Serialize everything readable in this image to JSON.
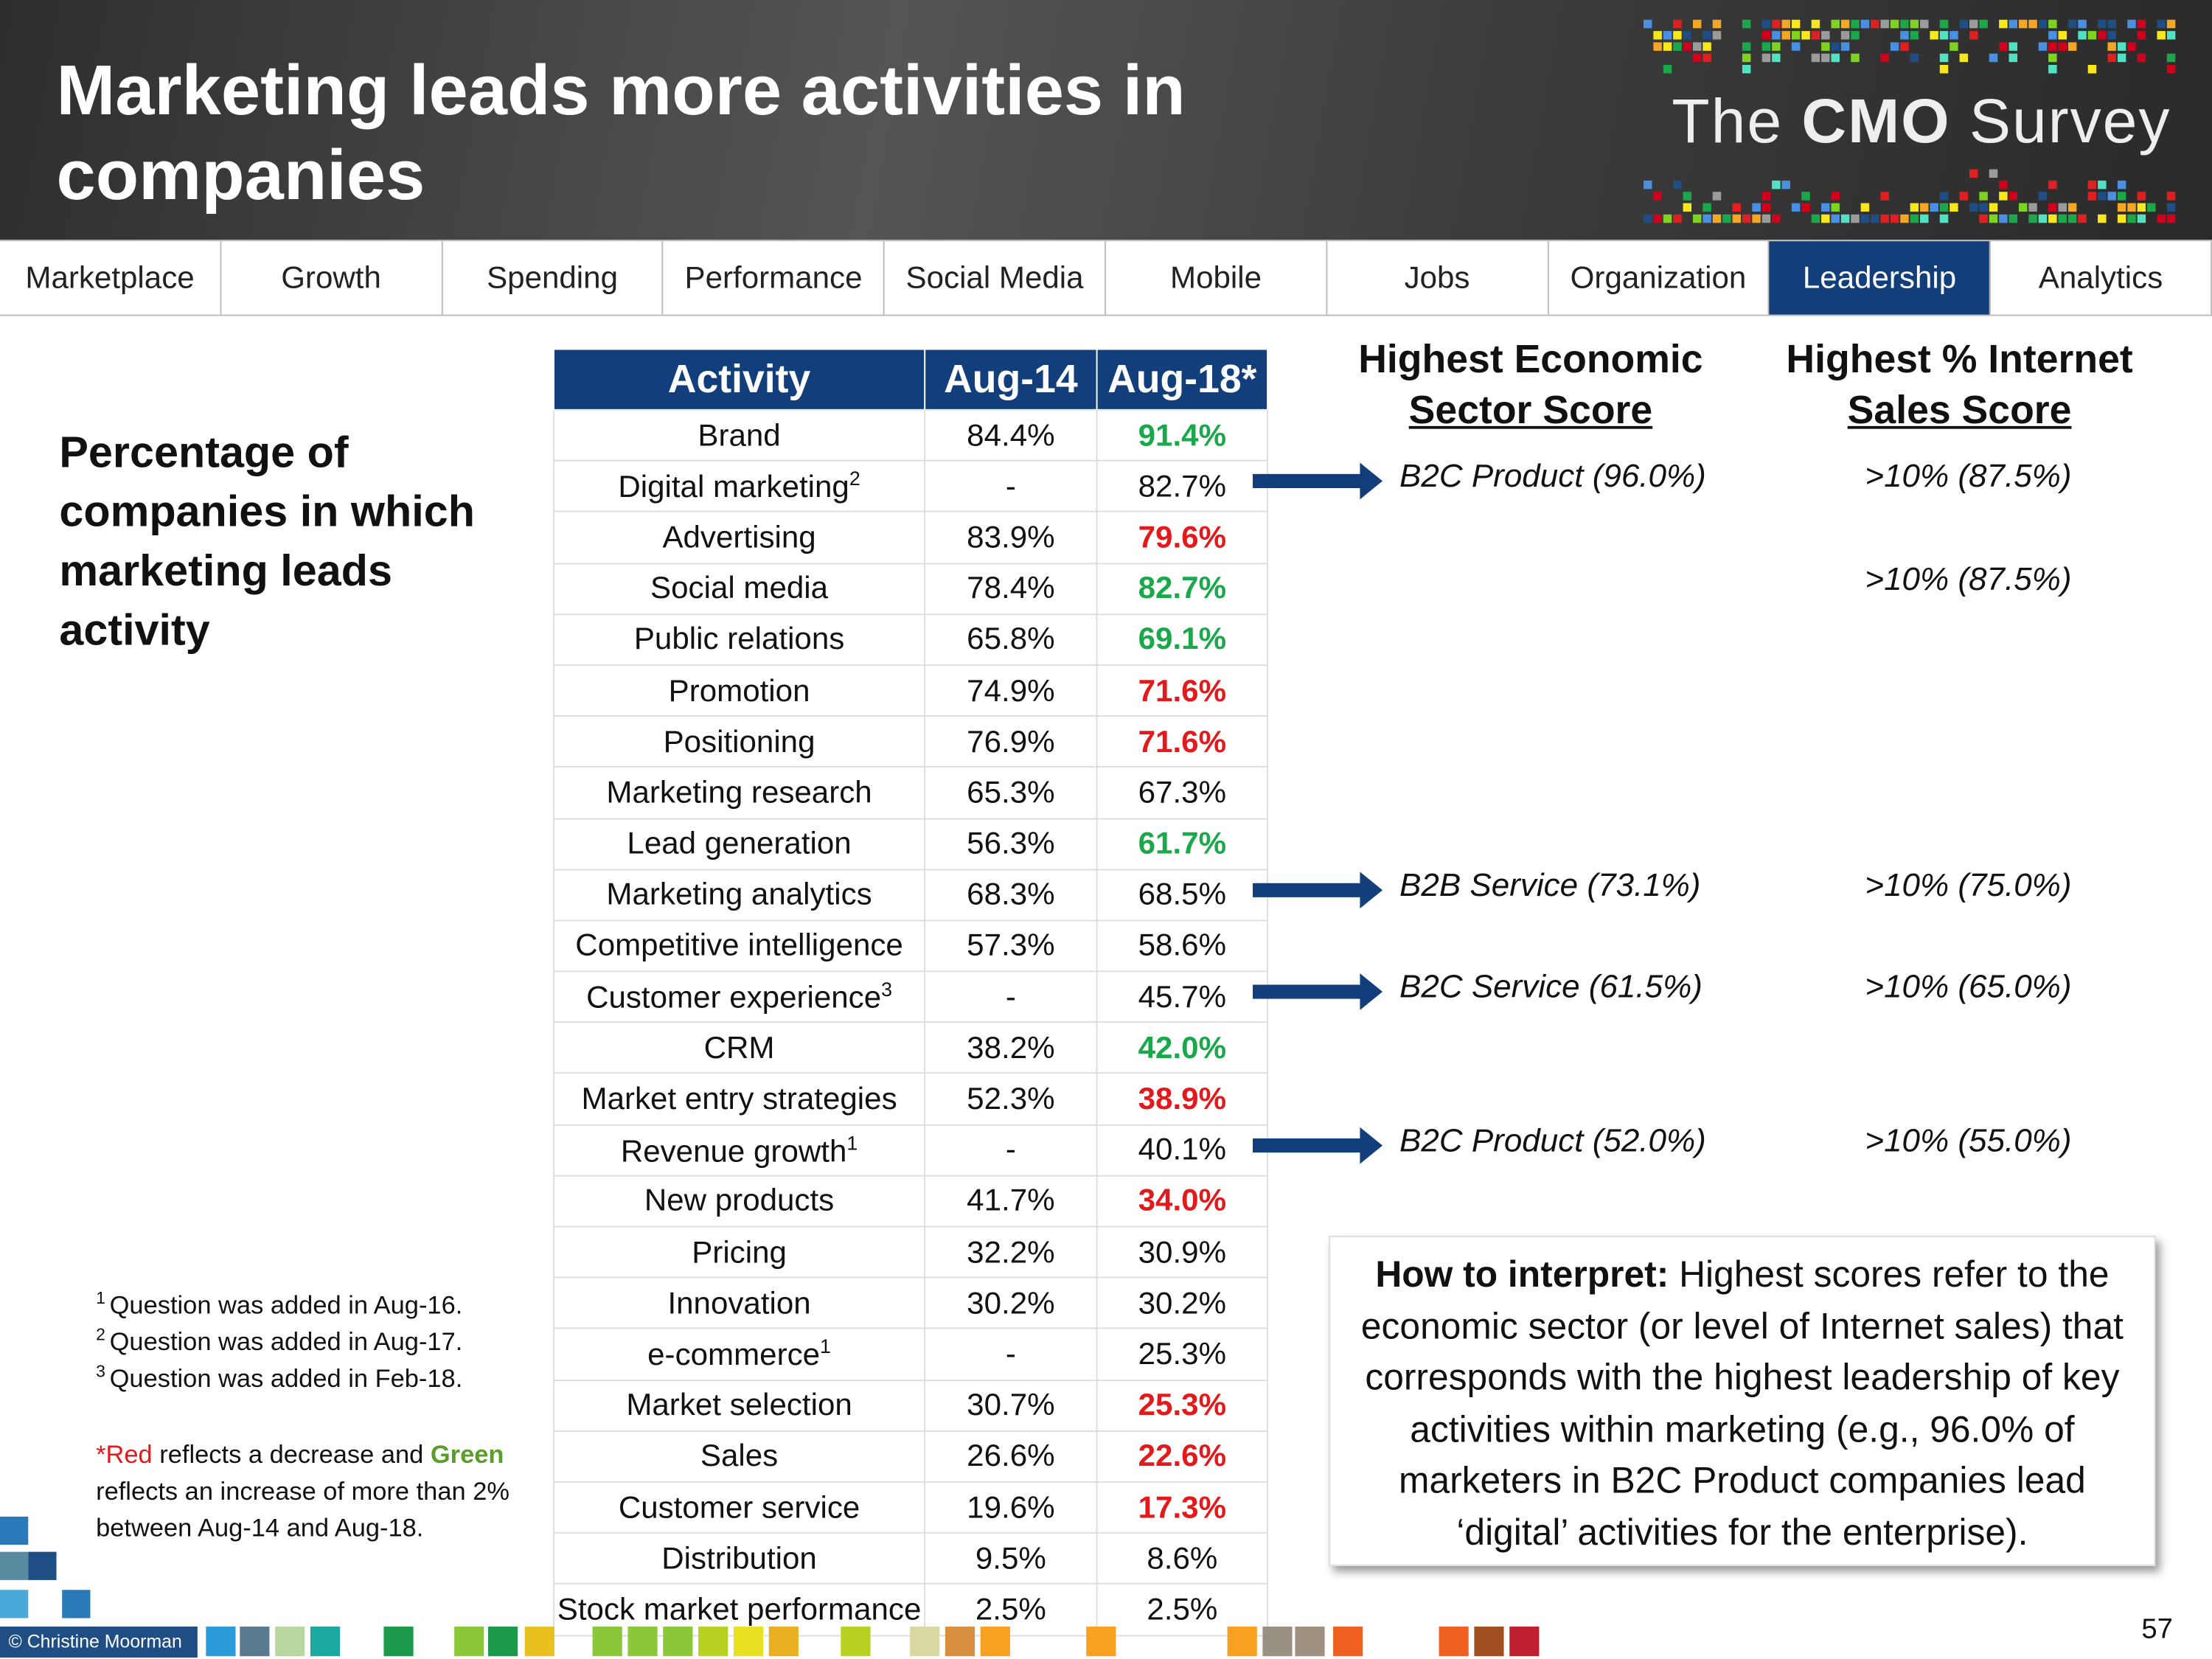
{
  "header": {
    "title": "Marketing leads more activities in companies",
    "logo": {
      "pre": "The",
      "bold": "CMO",
      "post": "Survey"
    }
  },
  "nav": {
    "tabs": [
      "Marketplace",
      "Growth",
      "Spending",
      "Performance",
      "Social Media",
      "Mobile",
      "Jobs",
      "Organization",
      "Leadership",
      "Analytics"
    ],
    "active": 8
  },
  "subtitle": "Percentage of companies in which marketing leads activity",
  "table": {
    "columns": [
      "Activity",
      "Aug-14",
      "Aug-18*"
    ],
    "rows": [
      {
        "activity": "Brand",
        "aug14": "84.4%",
        "aug18": "91.4%",
        "trend": "increase"
      },
      {
        "activity": "Digital marketing",
        "note": "2",
        "aug14": "-",
        "aug18": "82.7%",
        "trend": "none"
      },
      {
        "activity": "Advertising",
        "aug14": "83.9%",
        "aug18": "79.6%",
        "trend": "decrease"
      },
      {
        "activity": "Social media",
        "aug14": "78.4%",
        "aug18": "82.7%",
        "trend": "increase"
      },
      {
        "activity": "Public relations",
        "aug14": "65.8%",
        "aug18": "69.1%",
        "trend": "increase"
      },
      {
        "activity": "Promotion",
        "aug14": "74.9%",
        "aug18": "71.6%",
        "trend": "decrease"
      },
      {
        "activity": "Positioning",
        "aug14": "76.9%",
        "aug18": "71.6%",
        "trend": "decrease"
      },
      {
        "activity": "Marketing research",
        "aug14": "65.3%",
        "aug18": "67.3%",
        "trend": "none"
      },
      {
        "activity": "Lead generation",
        "aug14": "56.3%",
        "aug18": "61.7%",
        "trend": "increase"
      },
      {
        "activity": "Marketing analytics",
        "aug14": "68.3%",
        "aug18": "68.5%",
        "trend": "none"
      },
      {
        "activity": "Competitive intelligence",
        "aug14": "57.3%",
        "aug18": "58.6%",
        "trend": "none"
      },
      {
        "activity": "Customer experience",
        "note": "3",
        "aug14": "-",
        "aug18": "45.7%",
        "trend": "none"
      },
      {
        "activity": "CRM",
        "aug14": "38.2%",
        "aug18": "42.0%",
        "trend": "increase"
      },
      {
        "activity": "Market entry strategies",
        "aug14": "52.3%",
        "aug18": "38.9%",
        "trend": "decrease"
      },
      {
        "activity": "Revenue growth",
        "note": "1",
        "aug14": "-",
        "aug18": "40.1%",
        "trend": "none"
      },
      {
        "activity": "New products",
        "aug14": "41.7%",
        "aug18": "34.0%",
        "trend": "decrease"
      },
      {
        "activity": "Pricing",
        "aug14": "32.2%",
        "aug18": "30.9%",
        "trend": "none"
      },
      {
        "activity": "Innovation",
        "aug14": "30.2%",
        "aug18": "30.2%",
        "trend": "none"
      },
      {
        "activity": "e-commerce",
        "note": "1",
        "aug14": "-",
        "aug18": "25.3%",
        "trend": "none"
      },
      {
        "activity": "Market selection",
        "aug14": "30.7%",
        "aug18": "25.3%",
        "trend": "decrease"
      },
      {
        "activity": "Sales",
        "aug14": "26.6%",
        "aug18": "22.6%",
        "trend": "decrease"
      },
      {
        "activity": "Customer service",
        "aug14": "19.6%",
        "aug18": "17.3%",
        "trend": "decrease"
      },
      {
        "activity": "Distribution",
        "aug14": "9.5%",
        "aug18": "8.6%",
        "trend": "none"
      },
      {
        "activity": "Stock market performance",
        "aug14": "2.5%",
        "aug18": "2.5%",
        "trend": "none"
      }
    ]
  },
  "side_headers": [
    [
      "Highest Economic",
      "Sector Score"
    ],
    [
      "Highest % Internet",
      "Sales Score"
    ]
  ],
  "annotations": [
    {
      "row": 1,
      "sector": "B2C Product (96.0%)",
      "internet": ">10% (87.5%)"
    },
    {
      "row": 3,
      "internet": ">10% (87.5%)"
    },
    {
      "row": 9,
      "sector": "B2B Service (73.1%)",
      "internet": ">10% (75.0%)"
    },
    {
      "row": 11,
      "sector": "B2C Service (61.5%)",
      "internet": ">10% (65.0%)"
    },
    {
      "row": 14,
      "sector": "B2C Product (52.0%)",
      "internet": ">10% (55.0%)"
    }
  ],
  "interpret": {
    "bold": "How to interpret:",
    "text": "Highest scores refer to the economic sector (or level of Internet sales) that corresponds with the highest leadership of key activities within marketing (e.g., 96.0% of marketers in B2C Product companies lead ‘digital’ activities for the enterprise)."
  },
  "footnotes": [
    {
      "mark": "1",
      "text": "Question was added in Aug-16."
    },
    {
      "mark": "2",
      "text": "Question was added in Aug-17."
    },
    {
      "mark": "3",
      "text": "Question was added in Feb-18."
    }
  ],
  "legend_note": {
    "star": "*",
    "red": "Red",
    "mid": " reflects a decrease and ",
    "green": "Green",
    "end": " reflects an increase of more than 2% between Aug-14 and Aug-18."
  },
  "copyright": "© Christine Moorman",
  "page_number": "57"
}
